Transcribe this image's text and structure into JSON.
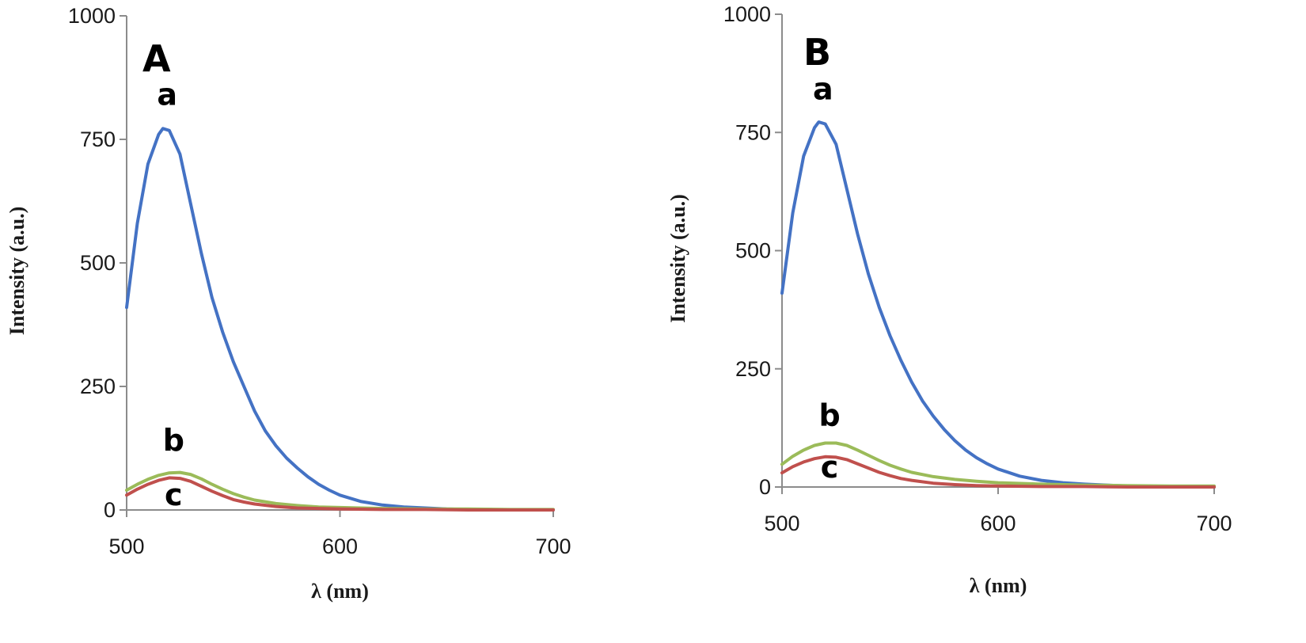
{
  "chart_data": [
    {
      "type": "line",
      "panel_label": "A",
      "xlabel": "λ (nm)",
      "ylabel": "Intensity (a.u.)",
      "xlim": [
        500,
        700
      ],
      "ylim": [
        0,
        1000
      ],
      "xticks": [
        500,
        600,
        700
      ],
      "yticks": [
        0,
        250,
        500,
        750,
        1000
      ],
      "grid": false,
      "legend": "none",
      "series": [
        {
          "name": "a",
          "color": "#4472c4",
          "x": [
            500,
            505,
            510,
            515,
            517,
            520,
            525,
            530,
            535,
            540,
            545,
            550,
            555,
            560,
            565,
            570,
            575,
            580,
            585,
            590,
            595,
            600,
            610,
            620,
            630,
            640,
            650,
            660,
            670,
            680,
            690,
            700
          ],
          "y": [
            410,
            580,
            700,
            760,
            772,
            768,
            720,
            620,
            520,
            430,
            360,
            300,
            250,
            200,
            160,
            130,
            105,
            85,
            67,
            52,
            40,
            30,
            17,
            10,
            6,
            4,
            2,
            1,
            1,
            0,
            0,
            0
          ],
          "label_pos": [
            519,
            820
          ]
        },
        {
          "name": "b",
          "color": "#9bbb59",
          "x": [
            500,
            505,
            510,
            515,
            520,
            525,
            530,
            535,
            540,
            545,
            550,
            555,
            560,
            570,
            580,
            590,
            600,
            620,
            640,
            660,
            680,
            700
          ],
          "y": [
            40,
            52,
            62,
            70,
            75,
            76,
            72,
            63,
            52,
            42,
            33,
            26,
            20,
            13,
            9,
            6,
            5,
            3,
            2,
            2,
            1,
            1
          ],
          "label_pos": [
            522,
            120
          ]
        },
        {
          "name": "c",
          "color": "#c0504d",
          "x": [
            500,
            505,
            510,
            515,
            520,
            525,
            530,
            535,
            540,
            545,
            550,
            555,
            560,
            570,
            580,
            590,
            600,
            620,
            640,
            660,
            680,
            700
          ],
          "y": [
            30,
            42,
            52,
            60,
            65,
            64,
            58,
            48,
            38,
            29,
            21,
            16,
            12,
            7,
            4,
            3,
            2,
            1,
            1,
            0,
            0,
            0
          ],
          "label_pos": [
            522,
            10
          ]
        }
      ]
    },
    {
      "type": "line",
      "panel_label": "B",
      "xlabel": "λ (nm)",
      "ylabel": "Intensity (a.u.)",
      "xlim": [
        500,
        700
      ],
      "ylim": [
        0,
        1000
      ],
      "xticks": [
        500,
        600,
        700
      ],
      "yticks": [
        0,
        250,
        500,
        750,
        1000
      ],
      "grid": false,
      "legend": "none",
      "series": [
        {
          "name": "a",
          "color": "#4472c4",
          "x": [
            500,
            505,
            510,
            515,
            517,
            520,
            525,
            530,
            535,
            540,
            545,
            550,
            555,
            560,
            565,
            570,
            575,
            580,
            585,
            590,
            595,
            600,
            610,
            620,
            630,
            640,
            650,
            660,
            670,
            680,
            690,
            700
          ],
          "y": [
            410,
            580,
            700,
            760,
            772,
            768,
            725,
            630,
            535,
            450,
            380,
            320,
            268,
            222,
            182,
            150,
            122,
            98,
            78,
            62,
            49,
            38,
            23,
            14,
            9,
            6,
            4,
            2,
            1,
            1,
            0,
            0
          ],
          "label_pos": [
            519,
            820
          ]
        },
        {
          "name": "b",
          "color": "#9bbb59",
          "x": [
            500,
            505,
            510,
            515,
            520,
            525,
            530,
            535,
            540,
            545,
            550,
            555,
            560,
            570,
            580,
            590,
            600,
            620,
            640,
            660,
            680,
            700
          ],
          "y": [
            48,
            65,
            78,
            88,
            93,
            93,
            88,
            78,
            67,
            56,
            46,
            38,
            31,
            22,
            16,
            12,
            9,
            6,
            4,
            3,
            2,
            2
          ],
          "label_pos": [
            522,
            130
          ]
        },
        {
          "name": "c",
          "color": "#c0504d",
          "x": [
            500,
            505,
            510,
            515,
            520,
            525,
            530,
            535,
            540,
            545,
            550,
            555,
            560,
            570,
            580,
            590,
            600,
            620,
            640,
            660,
            680,
            700
          ],
          "y": [
            30,
            43,
            53,
            60,
            64,
            63,
            58,
            49,
            40,
            31,
            24,
            18,
            14,
            8,
            5,
            3,
            2,
            1,
            1,
            0,
            0,
            0
          ],
          "label_pos": [
            522,
            20
          ]
        }
      ]
    }
  ]
}
